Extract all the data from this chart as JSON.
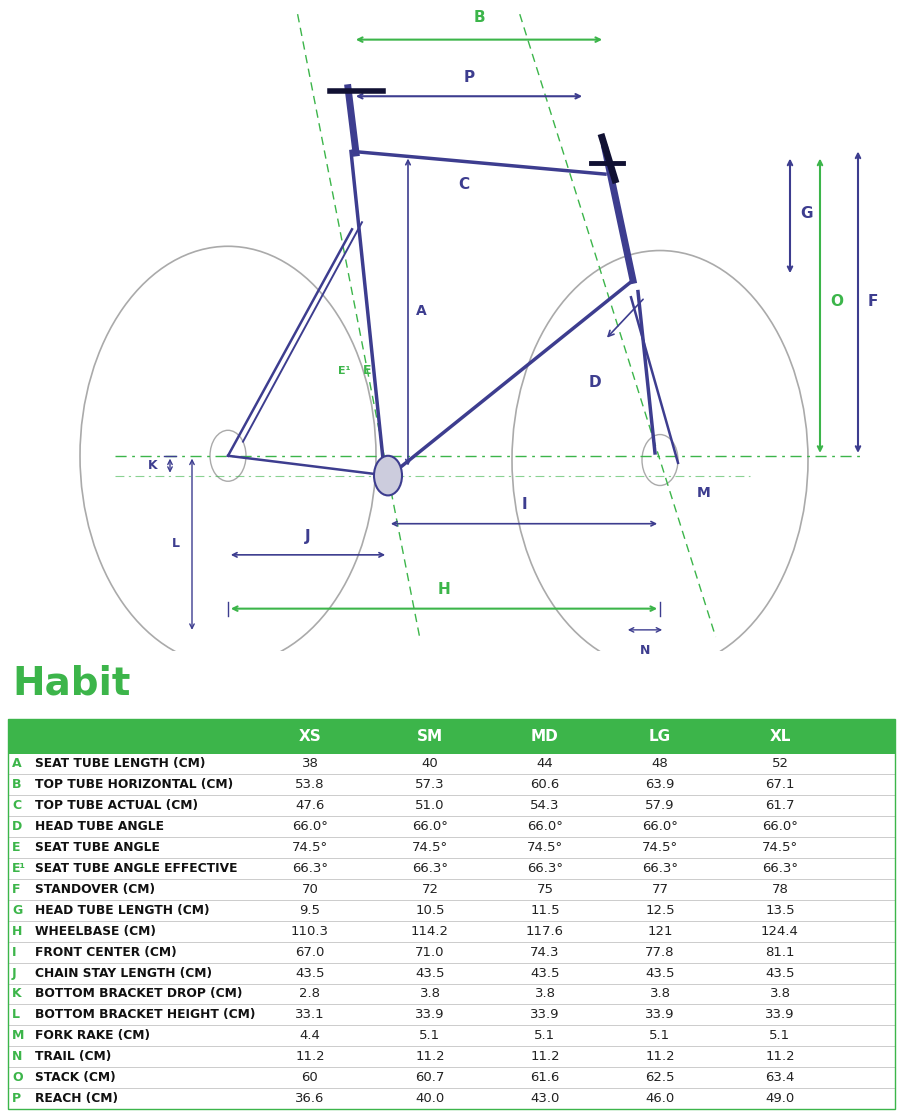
{
  "title": "Habit",
  "title_color": "#3cb54a",
  "background_color": "#ffffff",
  "header_bg_color": "#3cb54a",
  "header_text_color": "#ffffff",
  "row_label_color": "#3cb54a",
  "border_color": "#cccccc",
  "text_color": "#222222",
  "columns": [
    "XS",
    "SM",
    "MD",
    "LG",
    "XL"
  ],
  "rows": [
    {
      "label": "A",
      "name": "SEAT TUBE LENGTH (CM)",
      "values": [
        "38",
        "40",
        "44",
        "48",
        "52"
      ]
    },
    {
      "label": "B",
      "name": "TOP TUBE HORIZONTAL (CM)",
      "values": [
        "53.8",
        "57.3",
        "60.6",
        "63.9",
        "67.1"
      ]
    },
    {
      "label": "C",
      "name": "TOP TUBE ACTUAL (CM)",
      "values": [
        "47.6",
        "51.0",
        "54.3",
        "57.9",
        "61.7"
      ]
    },
    {
      "label": "D",
      "name": "HEAD TUBE ANGLE",
      "values": [
        "66.0°",
        "66.0°",
        "66.0°",
        "66.0°",
        "66.0°"
      ]
    },
    {
      "label": "E",
      "name": "SEAT TUBE ANGLE",
      "values": [
        "74.5°",
        "74.5°",
        "74.5°",
        "74.5°",
        "74.5°"
      ]
    },
    {
      "label": "E¹",
      "name": "SEAT TUBE ANGLE EFFECTIVE",
      "values": [
        "66.3°",
        "66.3°",
        "66.3°",
        "66.3°",
        "66.3°"
      ]
    },
    {
      "label": "F",
      "name": "STANDOVER (CM)",
      "values": [
        "70",
        "72",
        "75",
        "77",
        "78"
      ]
    },
    {
      "label": "G",
      "name": "HEAD TUBE LENGTH (CM)",
      "values": [
        "9.5",
        "10.5",
        "11.5",
        "12.5",
        "13.5"
      ]
    },
    {
      "label": "H",
      "name": "WHEELBASE (CM)",
      "values": [
        "110.3",
        "114.2",
        "117.6",
        "121",
        "124.4"
      ]
    },
    {
      "label": "I",
      "name": "FRONT CENTER (CM)",
      "values": [
        "67.0",
        "71.0",
        "74.3",
        "77.8",
        "81.1"
      ]
    },
    {
      "label": "J",
      "name": "CHAIN STAY LENGTH (CM)",
      "values": [
        "43.5",
        "43.5",
        "43.5",
        "43.5",
        "43.5"
      ]
    },
    {
      "label": "K",
      "name": "BOTTOM BRACKET DROP (CM)",
      "values": [
        "2.8",
        "3.8",
        "3.8",
        "3.8",
        "3.8"
      ]
    },
    {
      "label": "L",
      "name": "BOTTOM BRACKET HEIGHT (CM)",
      "values": [
        "33.1",
        "33.9",
        "33.9",
        "33.9",
        "33.9"
      ]
    },
    {
      "label": "M",
      "name": "FORK RAKE (CM)",
      "values": [
        "4.4",
        "5.1",
        "5.1",
        "5.1",
        "5.1"
      ]
    },
    {
      "label": "N",
      "name": "TRAIL (CM)",
      "values": [
        "11.2",
        "11.2",
        "11.2",
        "11.2",
        "11.2"
      ]
    },
    {
      "label": "O",
      "name": "STACK (CM)",
      "values": [
        "60",
        "60.7",
        "61.6",
        "62.5",
        "63.4"
      ]
    },
    {
      "label": "P",
      "name": "REACH (CM)",
      "values": [
        "36.6",
        "40.0",
        "43.0",
        "46.0",
        "49.0"
      ]
    }
  ],
  "purple": "#3d3d8f",
  "green": "#3cb54a",
  "gray": "#aaaaaa"
}
